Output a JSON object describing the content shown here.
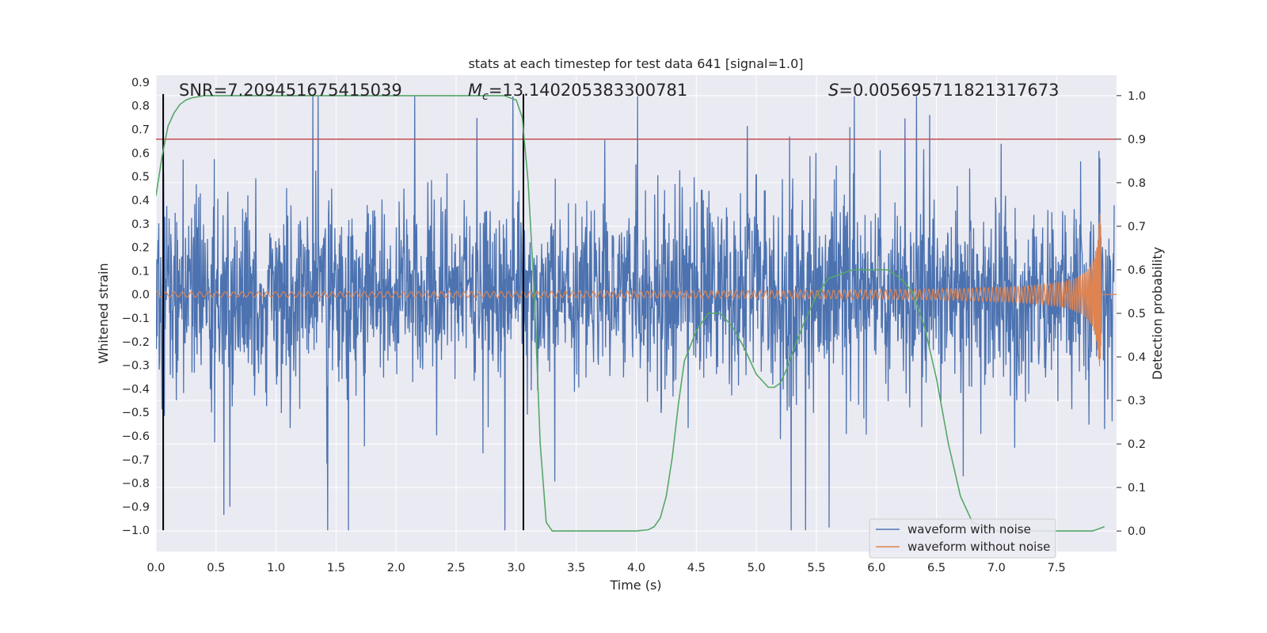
{
  "chart_data": {
    "type": "line",
    "title": "stats at each timestep for test data 641 [signal=1.0]",
    "xlabel": "Time (s)",
    "ylabel_left": "Whitened strain",
    "ylabel_right": "Detection probability",
    "xlim": [
      0.0,
      8.0
    ],
    "ylim_left": [
      -1.09,
      0.93
    ],
    "ylim_right": [
      -0.047,
      1.047
    ],
    "x_ticks": [
      "0.0",
      "0.5",
      "1.0",
      "1.5",
      "2.0",
      "2.5",
      "3.0",
      "3.5",
      "4.0",
      "4.5",
      "5.0",
      "5.5",
      "6.0",
      "6.5",
      "7.0",
      "7.5"
    ],
    "y_left_ticks": [
      "0.9",
      "0.8",
      "0.7",
      "0.6",
      "0.5",
      "0.4",
      "0.3",
      "0.2",
      "0.1",
      "0.0",
      "−0.1",
      "−0.2",
      "−0.3",
      "−0.4",
      "−0.5",
      "−0.6",
      "−0.7",
      "−0.8",
      "−0.9",
      "−1.0"
    ],
    "y_right_ticks": [
      "1.0",
      "0.9",
      "0.8",
      "0.7",
      "0.6",
      "0.5",
      "0.4",
      "0.3",
      "0.2",
      "0.1",
      "0.0"
    ],
    "grid": true,
    "legend_position": "lower-right",
    "annotations": {
      "snr": "SNR=7.209451675415039",
      "mc_prefix": "M",
      "mc_sub": "c",
      "mc_value": "=13.140205383300781",
      "s_prefix": "S",
      "s_value": "=0.005695711821317673"
    },
    "series": [
      {
        "name": "waveform with noise",
        "color": "#4c72b0",
        "axis": "left",
        "kind": "noise",
        "t_start": 0.0,
        "t_end": 7.98,
        "amplitude_envelope": [
          -1.0,
          0.84
        ]
      },
      {
        "name": "waveform without noise",
        "color": "#dd8452",
        "axis": "left",
        "kind": "chirp",
        "t_start": 0.0,
        "merger_time": 7.87,
        "peak_amplitude": 0.35,
        "end_value": 0.0
      },
      {
        "name": "detection probability",
        "color": "#55a868",
        "axis": "right",
        "x": [
          0.0,
          0.05,
          0.1,
          0.15,
          0.2,
          0.25,
          0.3,
          0.4,
          0.5,
          1.0,
          2.0,
          2.9,
          3.0,
          3.05,
          3.1,
          3.15,
          3.2,
          3.25,
          3.3,
          3.5,
          3.8,
          4.0,
          4.1,
          4.15,
          4.2,
          4.25,
          4.3,
          4.35,
          4.4,
          4.5,
          4.6,
          4.7,
          4.8,
          4.9,
          5.0,
          5.1,
          5.15,
          5.2,
          5.25,
          5.3,
          5.4,
          5.5,
          5.6,
          5.7,
          5.8,
          5.9,
          6.0,
          6.1,
          6.2,
          6.3,
          6.4,
          6.5,
          6.6,
          6.7,
          6.8,
          7.0,
          7.5,
          7.8,
          7.85,
          7.9
        ],
        "y": [
          0.77,
          0.86,
          0.93,
          0.96,
          0.98,
          0.99,
          0.995,
          1.0,
          1.0,
          1.0,
          1.0,
          1.0,
          0.99,
          0.95,
          0.8,
          0.55,
          0.2,
          0.02,
          0.0,
          0.0,
          0.0,
          0.0,
          0.003,
          0.01,
          0.03,
          0.08,
          0.17,
          0.29,
          0.39,
          0.46,
          0.5,
          0.5,
          0.47,
          0.42,
          0.36,
          0.33,
          0.33,
          0.34,
          0.37,
          0.41,
          0.48,
          0.54,
          0.58,
          0.59,
          0.6,
          0.6,
          0.6,
          0.6,
          0.58,
          0.55,
          0.47,
          0.35,
          0.2,
          0.08,
          0.02,
          0.0,
          0.0,
          0.0,
          0.005,
          0.01
        ]
      },
      {
        "name": "threshold",
        "color": "#c44e52",
        "axis": "right",
        "y": 0.9
      },
      {
        "name": "detection window",
        "color": "#000000",
        "axis": "left",
        "x": [
          0.06,
          3.06
        ],
        "y_range": [
          -1.0,
          0.85
        ]
      }
    ]
  }
}
